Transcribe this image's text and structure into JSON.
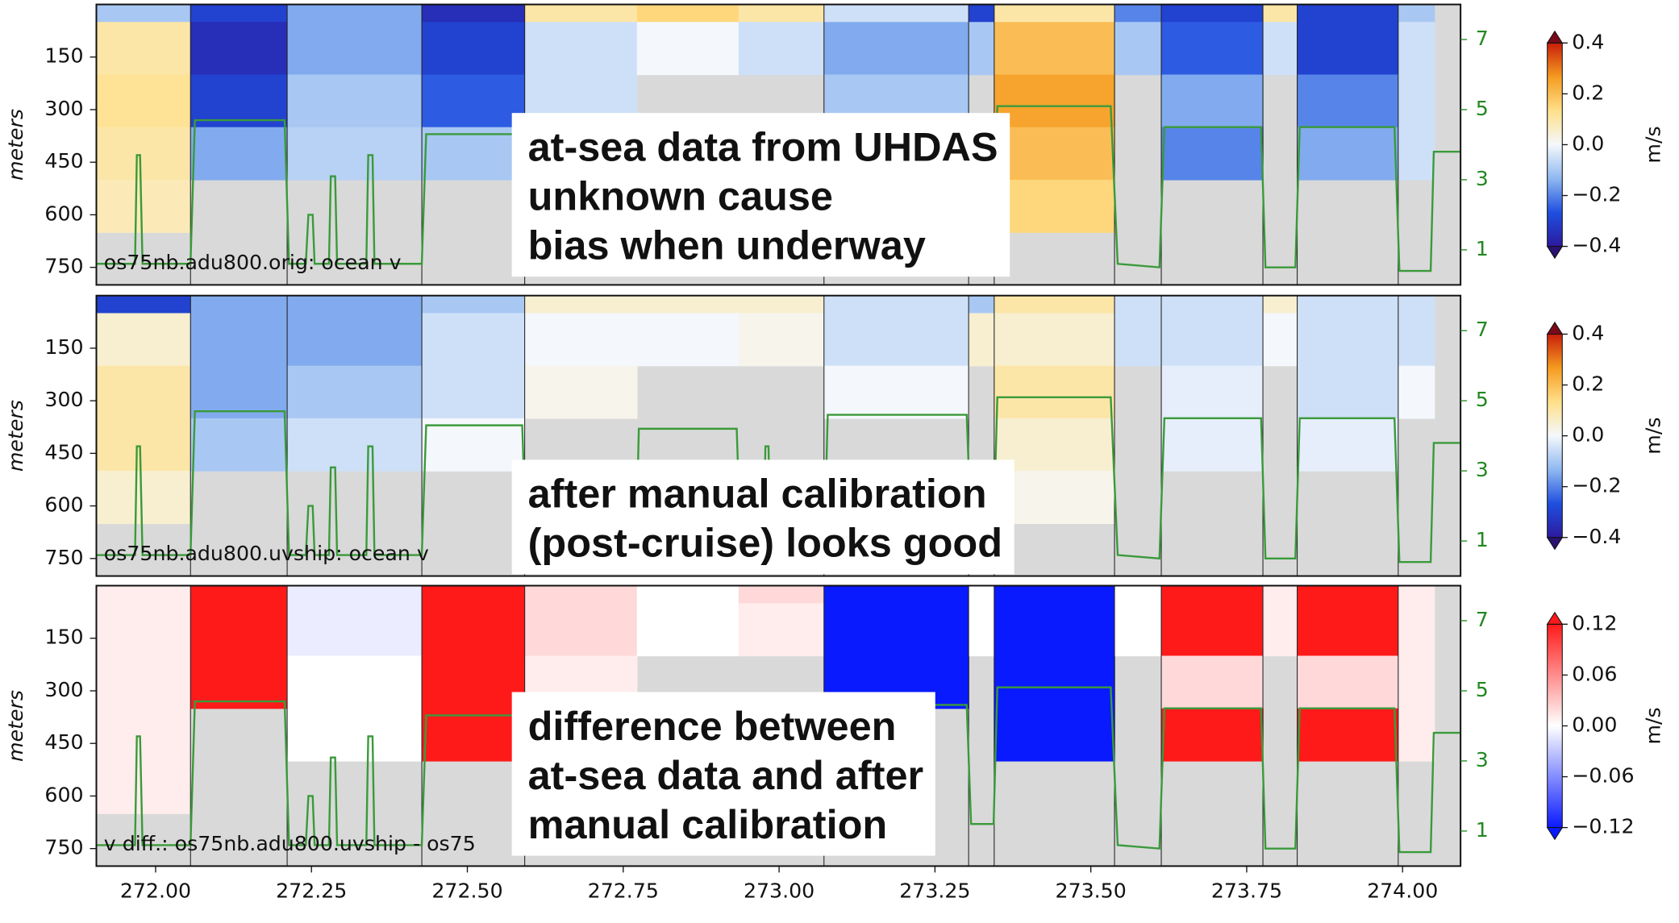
{
  "chart_data": [
    {
      "type": "heatmap",
      "label": "os75nb.adu800.orig: ocean v",
      "ylabel": "meters",
      "clabel": "m/s",
      "annotation": [
        "at-sea data from UHDAS",
        "unknown cause",
        "bias when underway"
      ],
      "xlim": [
        271.905,
        274.093
      ],
      "ylim": [
        800,
        0
      ],
      "yticks": [
        150,
        300,
        450,
        600,
        750
      ],
      "y2lim": [
        0,
        8
      ],
      "y2ticks": [
        1,
        3,
        5,
        7
      ],
      "clim": [
        -0.4,
        0.4
      ],
      "cticks": [
        0.4,
        0.2,
        {
          "value": 0,
          "label": "0.0"
        },
        {
          "value": -0.2,
          "label": "−0.2"
        },
        {
          "value": -0.4,
          "label": "−0.4"
        }
      ],
      "colormap": [
        "#2c1a9e",
        "#1f4fe0",
        "#8fb8f0",
        "#f4f8fc",
        "#ffe08a",
        "#f59b20",
        "#c81e0a"
      ],
      "extend_colors": [
        "#2a1270",
        "#7a0a1a"
      ],
      "nodata_color": "#d9d9d9",
      "boundaries": [
        272.056,
        272.211,
        272.427,
        272.592,
        273.072,
        273.304,
        273.345,
        273.538,
        273.613,
        273.776,
        273.831,
        273.993
      ],
      "x_edges": [
        271.905,
        272.056,
        272.211,
        272.427,
        272.592,
        272.772,
        272.935,
        273.072,
        273.304,
        273.345,
        273.538,
        273.613,
        273.776,
        273.831,
        273.993,
        274.051,
        274.093
      ],
      "depth_edges": [
        0,
        50,
        200,
        350,
        500,
        650,
        800
      ],
      "values": [
        [
          -0.1,
          0.1,
          0.12,
          0.1,
          0.08,
          null
        ],
        [
          -0.3,
          -0.35,
          -0.3,
          -0.15,
          null,
          null
        ],
        [
          -0.15,
          -0.15,
          -0.1,
          -0.08,
          null,
          null
        ],
        [
          -0.35,
          -0.3,
          -0.25,
          -0.1,
          null,
          null
        ],
        [
          0.1,
          -0.05,
          -0.05,
          null,
          null,
          null
        ],
        [
          0.15,
          0.0,
          null,
          null,
          null,
          null
        ],
        [
          0.1,
          -0.05,
          null,
          null,
          null,
          null
        ],
        [
          -0.05,
          -0.15,
          -0.1,
          null,
          null,
          null
        ],
        [
          -0.3,
          -0.1,
          null,
          null,
          null,
          null
        ],
        [
          0.1,
          0.2,
          0.25,
          0.2,
          0.15,
          null
        ],
        [
          -0.2,
          -0.1,
          null,
          null,
          null,
          null
        ],
        [
          -0.3,
          -0.25,
          -0.15,
          -0.2,
          null,
          null
        ],
        [
          0.1,
          -0.05,
          null,
          null,
          null,
          null
        ],
        [
          -0.3,
          -0.3,
          -0.2,
          -0.15,
          null,
          null
        ],
        [
          -0.1,
          -0.05,
          -0.05,
          -0.05,
          null,
          null
        ],
        [
          null,
          null,
          null,
          null,
          null,
          null
        ]
      ],
      "speed": {
        "color": "#3a9a3a",
        "axis": "y2",
        "x": [
          271.905,
          271.967,
          271.97,
          271.975,
          271.979,
          272.056,
          272.063,
          272.207,
          272.214,
          272.241,
          272.245,
          272.252,
          272.255,
          272.278,
          272.281,
          272.288,
          272.291,
          272.338,
          272.341,
          272.348,
          272.351,
          272.427,
          272.434,
          272.588,
          272.595,
          272.77,
          272.775,
          272.932,
          272.939,
          272.975,
          272.978,
          272.983,
          272.987,
          273.072,
          273.078,
          273.301,
          273.308,
          273.344,
          273.35,
          273.532,
          273.543,
          273.61,
          273.618,
          273.773,
          273.78,
          273.828,
          273.835,
          273.987,
          273.995,
          274.045,
          274.05,
          274.092
        ],
        "values": [
          0.6,
          0.6,
          3.7,
          3.7,
          0.6,
          0.6,
          4.7,
          4.7,
          0.6,
          0.6,
          2.0,
          2.0,
          0.6,
          0.6,
          3.1,
          3.1,
          0.6,
          0.6,
          3.7,
          3.7,
          0.6,
          0.6,
          4.3,
          4.3,
          0.5,
          0.5,
          4.2,
          4.2,
          0.5,
          0.5,
          3.7,
          3.7,
          0.5,
          0.5,
          4.6,
          4.6,
          1.2,
          1.2,
          5.1,
          5.1,
          0.6,
          0.5,
          4.5,
          4.5,
          0.5,
          0.5,
          4.5,
          4.5,
          0.4,
          0.4,
          3.8,
          3.8
        ]
      }
    },
    {
      "type": "heatmap",
      "label": "os75nb.adu800.uvship: ocean v",
      "ylabel": "meters",
      "clabel": "m/s",
      "annotation": [
        "after manual calibration",
        "(post-cruise) looks good"
      ],
      "xlim": [
        271.905,
        274.093
      ],
      "ylim": [
        800,
        0
      ],
      "yticks": [
        150,
        300,
        450,
        600,
        750
      ],
      "y2lim": [
        0,
        8
      ],
      "y2ticks": [
        1,
        3,
        5,
        7
      ],
      "clim": [
        -0.4,
        0.4
      ],
      "cticks": [
        0.4,
        0.2,
        {
          "value": 0,
          "label": "0.0"
        },
        {
          "value": -0.2,
          "label": "−0.2"
        },
        {
          "value": -0.4,
          "label": "−0.4"
        }
      ],
      "colormap": [
        "#2c1a9e",
        "#1f4fe0",
        "#8fb8f0",
        "#f4f8fc",
        "#ffe08a",
        "#f59b20",
        "#c81e0a"
      ],
      "extend_colors": [
        "#2a1270",
        "#7a0a1a"
      ],
      "nodata_color": "#d9d9d9",
      "boundaries": [
        272.056,
        272.211,
        272.427,
        272.592,
        273.072,
        273.304,
        273.345,
        273.538,
        273.613,
        273.776,
        273.831,
        273.993
      ],
      "x_edges": [
        271.905,
        272.056,
        272.211,
        272.427,
        272.592,
        272.772,
        272.935,
        273.072,
        273.304,
        273.345,
        273.538,
        273.613,
        273.776,
        273.831,
        273.993,
        274.051,
        274.093
      ],
      "depth_edges": [
        0,
        50,
        200,
        350,
        500,
        650,
        800
      ],
      "values": [
        [
          -0.3,
          0.05,
          0.1,
          0.1,
          0.05,
          null
        ],
        [
          -0.15,
          -0.15,
          -0.15,
          -0.1,
          null,
          null
        ],
        [
          -0.15,
          -0.15,
          -0.1,
          -0.05,
          null,
          null
        ],
        [
          -0.1,
          -0.05,
          -0.05,
          0.0,
          null,
          null
        ],
        [
          0.05,
          0.0,
          0.02,
          null,
          null,
          null
        ],
        [
          0.05,
          0.0,
          null,
          null,
          null,
          null
        ],
        [
          0.05,
          0.02,
          null,
          null,
          null,
          null
        ],
        [
          -0.05,
          -0.05,
          0.0,
          null,
          null,
          null
        ],
        [
          -0.1,
          0.05,
          null,
          null,
          null,
          null
        ],
        [
          0.1,
          0.05,
          0.1,
          0.05,
          0.02,
          null
        ],
        [
          -0.05,
          -0.05,
          null,
          null,
          null,
          null
        ],
        [
          -0.05,
          -0.05,
          -0.02,
          -0.02,
          null,
          null
        ],
        [
          0.05,
          0.0,
          null,
          null,
          null,
          null
        ],
        [
          -0.05,
          -0.05,
          -0.05,
          -0.02,
          null,
          null
        ],
        [
          -0.05,
          -0.05,
          0.0,
          null,
          null,
          null
        ],
        [
          null,
          null,
          null,
          null,
          null,
          null
        ]
      ],
      "speed": {
        "color": "#3a9a3a",
        "axis": "y2",
        "x": [
          271.905,
          271.967,
          271.97,
          271.975,
          271.979,
          272.056,
          272.063,
          272.207,
          272.214,
          272.241,
          272.245,
          272.252,
          272.255,
          272.278,
          272.281,
          272.288,
          272.291,
          272.338,
          272.341,
          272.348,
          272.351,
          272.427,
          272.434,
          272.588,
          272.595,
          272.77,
          272.775,
          272.932,
          272.939,
          272.975,
          272.978,
          272.983,
          272.987,
          273.072,
          273.078,
          273.301,
          273.308,
          273.344,
          273.35,
          273.532,
          273.543,
          273.61,
          273.618,
          273.773,
          273.78,
          273.828,
          273.835,
          273.987,
          273.995,
          274.045,
          274.05,
          274.092
        ],
        "values": [
          0.6,
          0.6,
          3.7,
          3.7,
          0.6,
          0.6,
          4.7,
          4.7,
          0.6,
          0.6,
          2.0,
          2.0,
          0.6,
          0.6,
          3.1,
          3.1,
          0.6,
          0.6,
          3.7,
          3.7,
          0.6,
          0.6,
          4.3,
          4.3,
          0.5,
          0.5,
          4.2,
          4.2,
          0.5,
          0.5,
          3.7,
          3.7,
          0.5,
          0.5,
          4.6,
          4.6,
          1.2,
          1.2,
          5.1,
          5.1,
          0.6,
          0.5,
          4.5,
          4.5,
          0.5,
          0.5,
          4.5,
          4.5,
          0.4,
          0.4,
          3.8,
          3.8
        ]
      }
    },
    {
      "type": "heatmap",
      "label": "v diff.: os75nb.adu800.uvship - os75",
      "ylabel": "meters",
      "clabel": "m/s",
      "annotation": [
        "difference between",
        "at-sea data and after",
        "manual calibration"
      ],
      "xlim": [
        271.905,
        274.093
      ],
      "ylim": [
        800,
        0
      ],
      "yticks": [
        150,
        300,
        450,
        600,
        750
      ],
      "xticks": [
        {
          "value": 272,
          "label": "272.00"
        },
        {
          "value": 272.25,
          "label": "272.25"
        },
        {
          "value": 272.5,
          "label": "272.50"
        },
        {
          "value": 272.75,
          "label": "272.75"
        },
        {
          "value": 273,
          "label": "273.00"
        },
        {
          "value": 273.25,
          "label": "273.25"
        },
        {
          "value": 273.5,
          "label": "273.50"
        },
        {
          "value": 273.75,
          "label": "273.75"
        },
        {
          "value": 274,
          "label": "274.00"
        }
      ],
      "y2lim": [
        0,
        8
      ],
      "y2ticks": [
        1,
        3,
        5,
        7
      ],
      "clim": [
        -0.12,
        0.12
      ],
      "cticks": [
        0.12,
        0.06,
        {
          "value": 0,
          "label": "0.00"
        },
        {
          "value": -0.06,
          "label": "−0.06"
        },
        {
          "value": -0.12,
          "label": "−0.12"
        }
      ],
      "colormap": [
        "#0a1aff",
        "#ffffff",
        "#ff1a1a"
      ],
      "extend_colors": [
        "#0a1aff",
        "#ff1a1a"
      ],
      "nodata_color": "#d9d9d9",
      "boundaries": [
        272.056,
        272.211,
        272.427,
        272.592,
        273.072,
        273.304,
        273.345,
        273.538,
        273.613,
        273.776,
        273.831,
        273.993
      ],
      "x_edges": [
        271.905,
        272.056,
        272.211,
        272.427,
        272.592,
        272.772,
        272.935,
        273.072,
        273.304,
        273.345,
        273.538,
        273.613,
        273.776,
        273.831,
        273.993,
        274.051,
        274.093
      ],
      "depth_edges": [
        0,
        50,
        200,
        350,
        500,
        650,
        800
      ],
      "values": [
        [
          0.01,
          0.01,
          0.01,
          0.01,
          0.01,
          null
        ],
        [
          0.2,
          0.2,
          0.2,
          null,
          null,
          null
        ],
        [
          -0.01,
          -0.01,
          0.0,
          0.0,
          null,
          null
        ],
        [
          0.2,
          0.2,
          0.2,
          0.2,
          null,
          null
        ],
        [
          0.02,
          0.02,
          0.01,
          null,
          null,
          null
        ],
        [
          0.0,
          0.0,
          null,
          null,
          null,
          null
        ],
        [
          0.02,
          0.01,
          null,
          null,
          null,
          null
        ],
        [
          -0.2,
          -0.2,
          -0.2,
          null,
          null,
          null
        ],
        [
          0.0,
          0.0,
          null,
          null,
          null,
          null
        ],
        [
          -0.2,
          -0.2,
          -0.2,
          -0.2,
          null,
          null
        ],
        [
          0.0,
          0.0,
          null,
          null,
          null,
          null
        ],
        [
          0.2,
          0.2,
          0.02,
          0.2,
          null,
          null
        ],
        [
          0.01,
          0.01,
          null,
          null,
          null,
          null
        ],
        [
          0.2,
          0.2,
          0.02,
          0.2,
          null,
          null
        ],
        [
          0.01,
          0.01,
          0.01,
          0.01,
          null,
          null
        ],
        [
          null,
          null,
          null,
          null,
          null,
          null
        ]
      ],
      "speed": {
        "color": "#3a9a3a",
        "axis": "y2",
        "x": [
          271.905,
          271.967,
          271.97,
          271.975,
          271.979,
          272.056,
          272.063,
          272.207,
          272.214,
          272.241,
          272.245,
          272.252,
          272.255,
          272.278,
          272.281,
          272.288,
          272.291,
          272.338,
          272.341,
          272.348,
          272.351,
          272.427,
          272.434,
          272.588,
          272.595,
          272.77,
          272.775,
          272.932,
          272.939,
          272.975,
          272.978,
          272.983,
          272.987,
          273.072,
          273.078,
          273.301,
          273.308,
          273.344,
          273.35,
          273.532,
          273.543,
          273.61,
          273.618,
          273.773,
          273.78,
          273.828,
          273.835,
          273.987,
          273.995,
          274.045,
          274.05,
          274.092
        ],
        "values": [
          0.6,
          0.6,
          3.7,
          3.7,
          0.6,
          0.6,
          4.7,
          4.7,
          0.6,
          0.6,
          2.0,
          2.0,
          0.6,
          0.6,
          3.1,
          3.1,
          0.6,
          0.6,
          3.7,
          3.7,
          0.6,
          0.6,
          4.3,
          4.3,
          0.5,
          0.5,
          4.2,
          4.2,
          0.5,
          0.5,
          3.7,
          3.7,
          0.5,
          0.5,
          4.6,
          4.6,
          1.2,
          1.2,
          5.1,
          5.1,
          0.6,
          0.5,
          4.5,
          4.5,
          0.5,
          0.5,
          4.5,
          4.5,
          0.4,
          0.4,
          3.8,
          3.8
        ]
      }
    }
  ]
}
